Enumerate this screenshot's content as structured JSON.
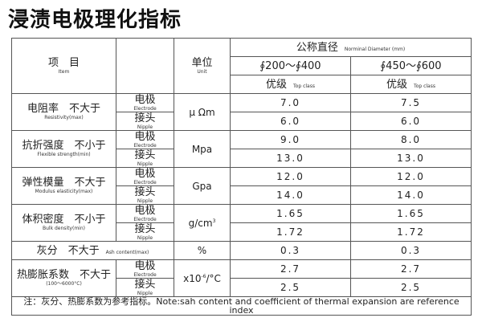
{
  "title": "浸渍电极理化指标",
  "header": {
    "item_zh": "项　目",
    "item_en": "Item",
    "unit_zh": "单位",
    "unit_en": "Unit",
    "diameter_zh": "公称直径",
    "diameter_en": "Norminal Diameter (mm)",
    "range1": "∮200～∮400",
    "range2": "∮450～∮600",
    "grade_zh": "优级",
    "grade_en": "Top class"
  },
  "labels": {
    "electrode_zh": "电极",
    "electrode_en": "Electrode",
    "nipple_zh": "接头",
    "nipple_en": "Nipple"
  },
  "rows": [
    {
      "name_zh": "电阻率　不大于",
      "name_en": "Resistivity(max)",
      "unit": "μ Ωm",
      "e1": "7.0",
      "e2": "7.5",
      "n1": "6.0",
      "n2": "6.0"
    },
    {
      "name_zh": "抗折强度　不小于",
      "name_en": "Flexible strength(min)",
      "unit": "Mpa",
      "e1": "9.0",
      "e2": "8.0",
      "n1": "13.0",
      "n2": "13.0"
    },
    {
      "name_zh": "弹性模量　不大于",
      "name_en": "Modulus elasticity(max)",
      "unit": "Gpa",
      "e1": "12.0",
      "e2": "12.0",
      "n1": "14.0",
      "n2": "14.0"
    },
    {
      "name_zh": "体积密度　不小于",
      "name_en": "Bulk density(min)",
      "unit": "g/cm",
      "unit_sup": "3",
      "e1": "1.65",
      "e2": "1.65",
      "n1": "1.72",
      "n2": "1.72"
    },
    {
      "name_zh": "热膨胀系数　不大于",
      "name_en": "(100～6000°C)",
      "unit": "x10",
      "unit_sup": "-6",
      "unit_tail": "/°C",
      "e1": "2.7",
      "e2": "2.7",
      "n1": "2.5",
      "n2": "2.5"
    }
  ],
  "ash": {
    "name_zh": "灰分　不大于",
    "name_en": "Ash content(max)",
    "unit": "%",
    "v1": "0.3",
    "v2": "0.3"
  },
  "note": "注：灰分、热膨系数为参考指标。Note:sah content and coefficient of thermal expansion are reference index"
}
